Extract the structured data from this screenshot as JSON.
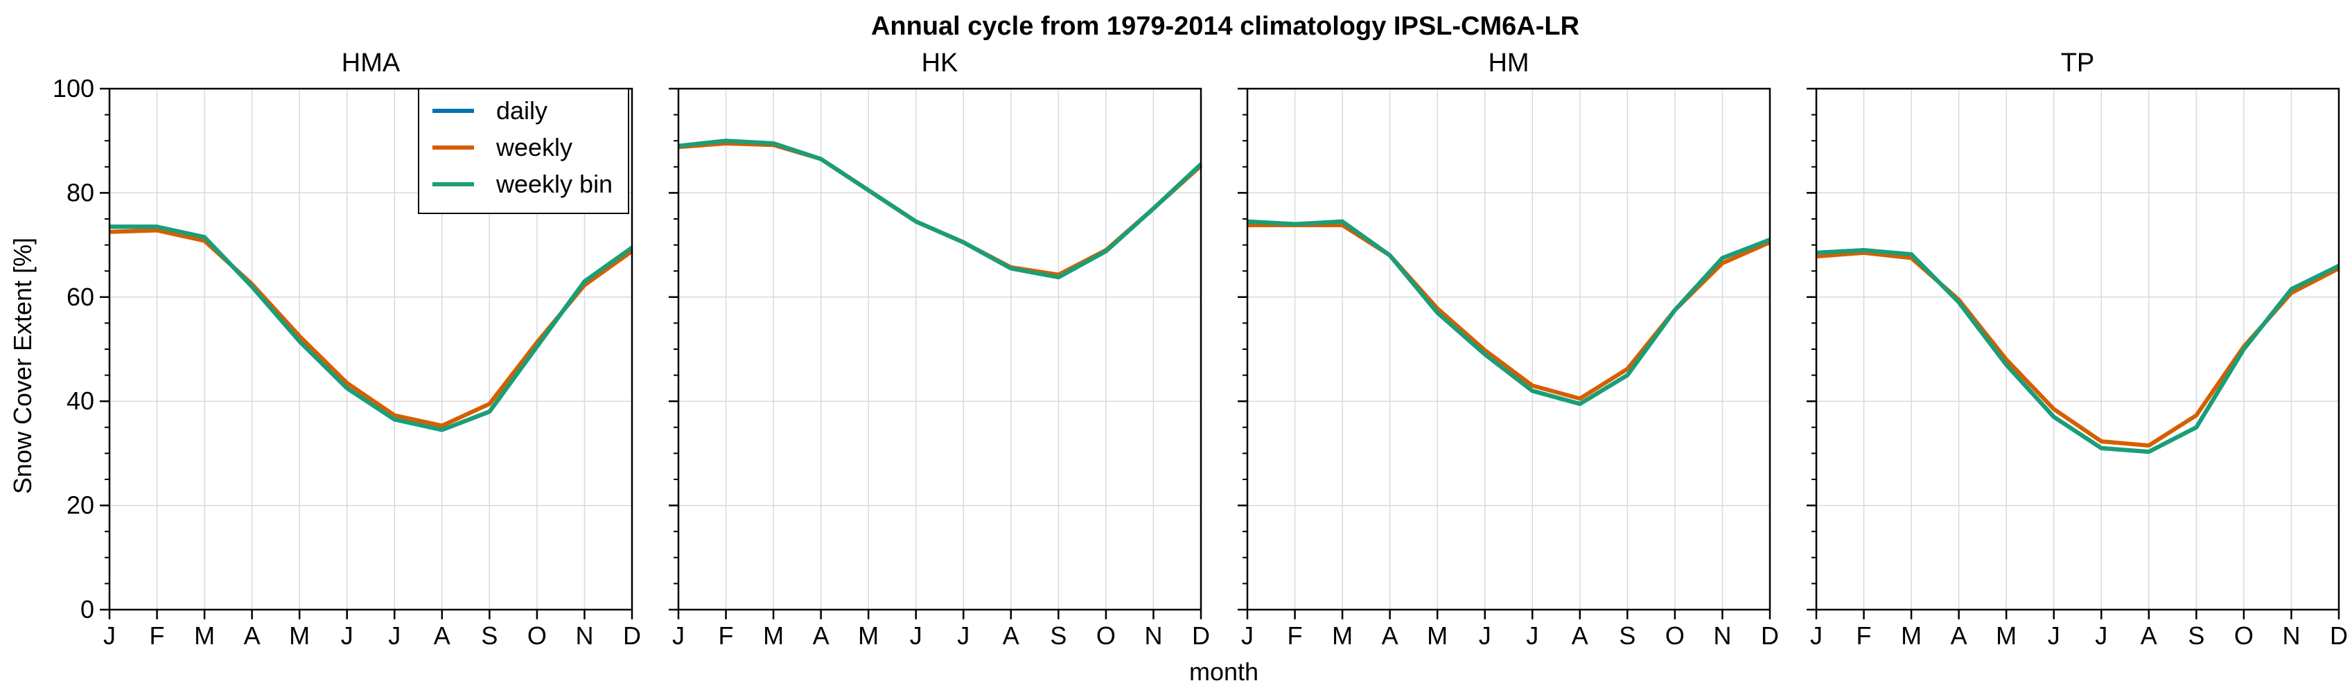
{
  "chart_data": {
    "type": "line",
    "title": "Annual cycle from 1979-2014 climatology IPSL-CM6A-LR",
    "xlabel": "month",
    "ylabel": "Snow Cover Extent [%]",
    "ylim": [
      0,
      100
    ],
    "yticks": [
      0,
      20,
      40,
      60,
      80,
      100
    ],
    "categories": [
      "J",
      "F",
      "M",
      "A",
      "M",
      "J",
      "J",
      "A",
      "S",
      "O",
      "N",
      "D"
    ],
    "grid": true,
    "legend": {
      "placement": "top-right of first panel",
      "entries": [
        "daily",
        "weekly",
        "weekly bin"
      ]
    },
    "colors": {
      "daily": "#0072b2",
      "weekly": "#d55e00",
      "weekly bin": "#1a9e77"
    },
    "panels": [
      {
        "title": "HMA",
        "series": [
          {
            "name": "daily",
            "values": [
              73.5,
              73.5,
              71.5,
              62,
              51.5,
              42.5,
              36.5,
              34.5,
              38,
              50.5,
              63,
              69.5
            ]
          },
          {
            "name": "weekly",
            "values": [
              72.5,
              72.8,
              70.8,
              62.5,
              52.5,
              43.5,
              37.3,
              35.3,
              39.5,
              51.3,
              62.3,
              68.8
            ]
          },
          {
            "name": "weekly bin",
            "values": [
              73.5,
              73.5,
              71.5,
              62,
              51.5,
              42.5,
              36.5,
              34.5,
              38,
              50.5,
              63,
              69.5
            ]
          }
        ]
      },
      {
        "title": "HK",
        "series": [
          {
            "name": "daily",
            "values": [
              89,
              90,
              89.5,
              86.5,
              80.5,
              74.5,
              70.5,
              65.5,
              63.8,
              68.8,
              77,
              85.5
            ]
          },
          {
            "name": "weekly",
            "values": [
              88.8,
              89.5,
              89.2,
              86.5,
              80.5,
              74.5,
              70.5,
              65.7,
              64.3,
              69,
              77,
              85.2
            ]
          },
          {
            "name": "weekly bin",
            "values": [
              89,
              90,
              89.5,
              86.5,
              80.5,
              74.5,
              70.5,
              65.5,
              63.8,
              68.8,
              77,
              85.5
            ]
          }
        ]
      },
      {
        "title": "HM",
        "series": [
          {
            "name": "daily",
            "values": [
              74.5,
              74,
              74.5,
              68,
              57,
              49,
              42,
              39.5,
              45,
              57.5,
              67.5,
              71
            ]
          },
          {
            "name": "weekly",
            "values": [
              73.8,
              73.8,
              73.8,
              68,
              57.8,
              49.8,
              43,
              40.5,
              46.2,
              57.5,
              66.5,
              70.5
            ]
          },
          {
            "name": "weekly bin",
            "values": [
              74.5,
              74,
              74.5,
              68,
              57,
              49,
              42,
              39.5,
              45,
              57.5,
              67.5,
              71
            ]
          }
        ]
      },
      {
        "title": "TP",
        "series": [
          {
            "name": "daily",
            "values": [
              68.5,
              69,
              68.2,
              59,
              47,
              37,
              31,
              30.3,
              35,
              50,
              61.5,
              66
            ]
          },
          {
            "name": "weekly",
            "values": [
              67.8,
              68.5,
              67.5,
              59.5,
              48,
              38.5,
              32.3,
              31.5,
              37.3,
              50.5,
              60.8,
              65.5
            ]
          },
          {
            "name": "weekly bin",
            "values": [
              68.5,
              69,
              68.2,
              59,
              47,
              37,
              31,
              30.3,
              35,
              50,
              61.5,
              66
            ]
          }
        ]
      }
    ]
  }
}
